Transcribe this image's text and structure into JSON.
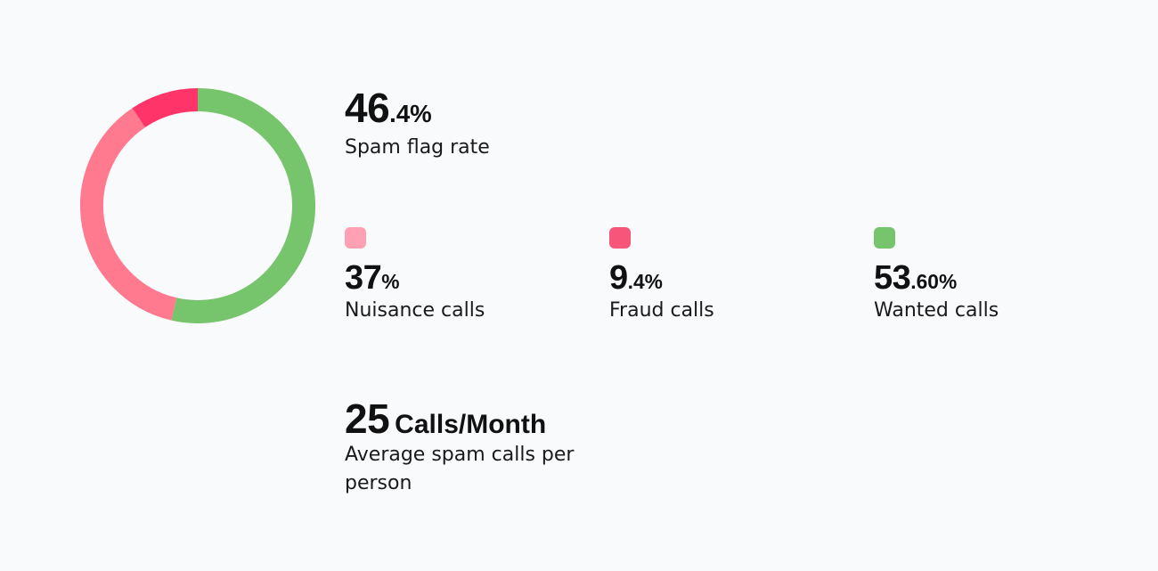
{
  "colors": {
    "nuisance": "#ff7a8f",
    "fraud": "#ff3468",
    "wanted": "#76c46b",
    "swatch_nuisance": "#ffa0b3",
    "swatch_fraud": "#f7567a",
    "swatch_wanted": "#76c46b"
  },
  "spam": {
    "value_main": "46",
    "value_small": ".4%",
    "label": "Spam flag rate"
  },
  "legend": {
    "nuisance": {
      "value_main": "37",
      "value_small": "%",
      "label": "Nuisance calls"
    },
    "fraud": {
      "value_main": "9",
      "value_small": ".4%",
      "label": "Fraud calls"
    },
    "wanted": {
      "value_main": "53",
      "value_small": ".60%",
      "label": "Wanted calls"
    }
  },
  "average": {
    "value": "25",
    "unit": "Calls/Month",
    "label": "Average spam calls per person"
  },
  "chart_data": {
    "type": "pie",
    "donut": true,
    "categories": [
      "Wanted calls",
      "Nuisance calls",
      "Fraud calls"
    ],
    "values": [
      53.6,
      37,
      9.4
    ],
    "colors": [
      "#76c46b",
      "#ff7a8f",
      "#ff3468"
    ],
    "start": "top",
    "direction": "clockwise",
    "legend": "right"
  }
}
